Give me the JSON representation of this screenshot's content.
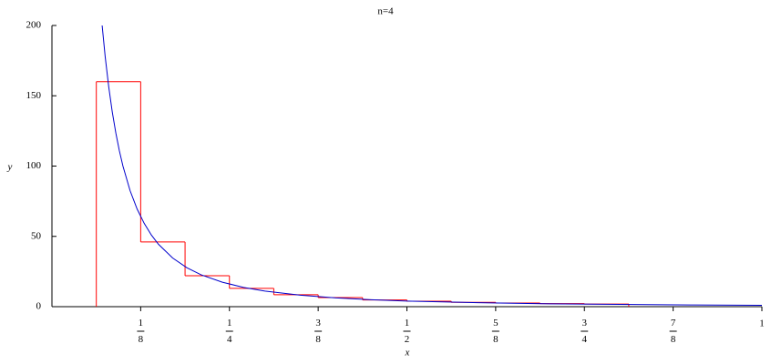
{
  "chart_data": {
    "type": "line",
    "title": "n=4",
    "x_label": "x",
    "y_label": "y",
    "xlim": [
      0,
      1
    ],
    "ylim": [
      0,
      200
    ],
    "xticks": [
      {
        "value": 0.125,
        "label": "1/8"
      },
      {
        "value": 0.25,
        "label": "1/4"
      },
      {
        "value": 0.375,
        "label": "3/8"
      },
      {
        "value": 0.5,
        "label": "1/2"
      },
      {
        "value": 0.625,
        "label": "5/8"
      },
      {
        "value": 0.75,
        "label": "3/4"
      },
      {
        "value": 0.875,
        "label": "7/8"
      },
      1
    ],
    "yticks": [
      0,
      50,
      100,
      150,
      200
    ],
    "series": [
      {
        "color": "#ff0000",
        "bins": [
          0.0625,
          0.125,
          0.1875,
          0.25,
          0.3125,
          0.375,
          0.4375,
          0.5,
          0.5625,
          0.625,
          0.6875,
          0.75,
          0.8125
        ],
        "values": [
          160,
          46,
          22,
          13,
          8.5,
          6.5,
          4.8,
          3.9,
          3.1,
          2.6,
          2.2,
          1.9
        ]
      },
      {
        "color": "#0000cc",
        "x": [
          0.0707,
          0.075,
          0.08,
          0.085,
          0.09,
          0.095,
          0.1,
          0.11,
          0.12,
          0.13,
          0.14,
          0.15,
          0.17,
          0.19,
          0.21,
          0.24,
          0.27,
          0.3,
          0.35,
          0.4,
          0.45,
          0.5,
          0.6,
          0.7,
          0.8,
          0.9,
          1
        ],
        "values": [
          200,
          177.8,
          156.3,
          138.4,
          123.5,
          110.8,
          100,
          82.6,
          69.4,
          59.2,
          51,
          44.4,
          34.6,
          27.7,
          22.7,
          17.4,
          13.7,
          11.1,
          8.2,
          6.25,
          4.9,
          4,
          2.8,
          2,
          1.6,
          1.2,
          1
        ]
      }
    ]
  }
}
